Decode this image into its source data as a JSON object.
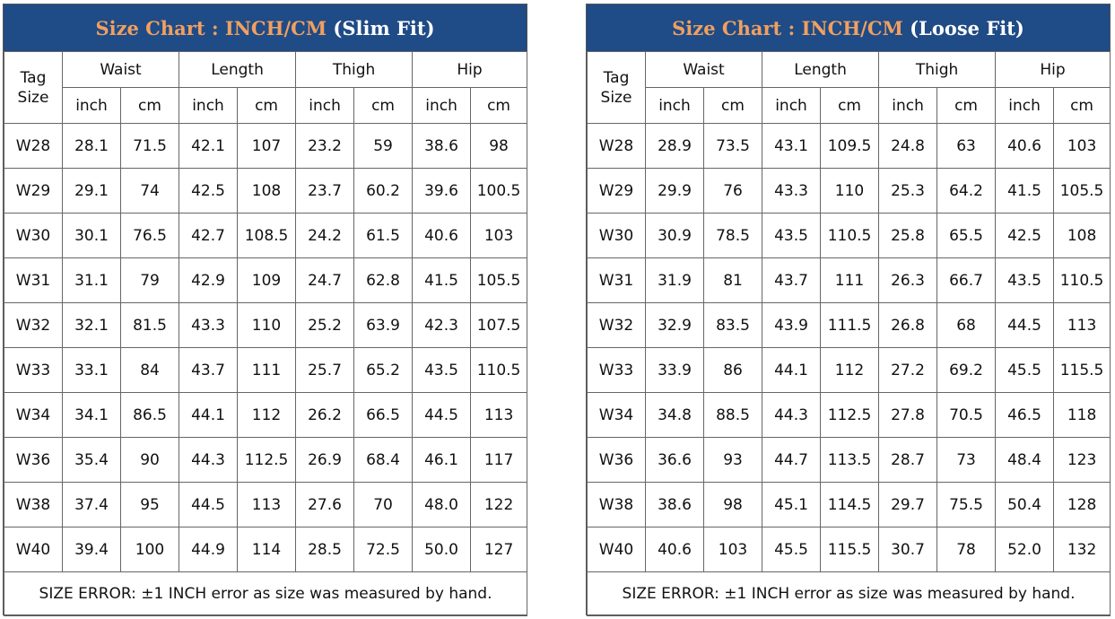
{
  "tables": [
    {
      "title_main": "Size Chart : INCH/CM ",
      "title_fit": "(Slim Fit)",
      "tag_header": [
        "Tag",
        "Size"
      ],
      "groups": [
        "Waist",
        "Length",
        "Thigh",
        "Hip"
      ],
      "units": [
        "inch",
        "cm",
        "inch",
        "cm",
        "inch",
        "cm",
        "inch",
        "cm"
      ],
      "rows": [
        [
          "W28",
          "28.1",
          "71.5",
          "42.1",
          "107",
          "23.2",
          "59",
          "38.6",
          "98"
        ],
        [
          "W29",
          "29.1",
          "74",
          "42.5",
          "108",
          "23.7",
          "60.2",
          "39.6",
          "100.5"
        ],
        [
          "W30",
          "30.1",
          "76.5",
          "42.7",
          "108.5",
          "24.2",
          "61.5",
          "40.6",
          "103"
        ],
        [
          "W31",
          "31.1",
          "79",
          "42.9",
          "109",
          "24.7",
          "62.8",
          "41.5",
          "105.5"
        ],
        [
          "W32",
          "32.1",
          "81.5",
          "43.3",
          "110",
          "25.2",
          "63.9",
          "42.3",
          "107.5"
        ],
        [
          "W33",
          "33.1",
          "84",
          "43.7",
          "111",
          "25.7",
          "65.2",
          "43.5",
          "110.5"
        ],
        [
          "W34",
          "34.1",
          "86.5",
          "44.1",
          "112",
          "26.2",
          "66.5",
          "44.5",
          "113"
        ],
        [
          "W36",
          "35.4",
          "90",
          "44.3",
          "112.5",
          "26.9",
          "68.4",
          "46.1",
          "117"
        ],
        [
          "W38",
          "37.4",
          "95",
          "44.5",
          "113",
          "27.6",
          "70",
          "48.0",
          "122"
        ],
        [
          "W40",
          "39.4",
          "100",
          "44.9",
          "114",
          "28.5",
          "72.5",
          "50.0",
          "127"
        ]
      ],
      "note": "SIZE ERROR: ±1 INCH error as size was measured by hand."
    },
    {
      "title_main": "Size Chart : INCH/CM ",
      "title_fit": "(Loose Fit)",
      "tag_header": [
        "Tag",
        "Size"
      ],
      "groups": [
        "Waist",
        "Length",
        "Thigh",
        "Hip"
      ],
      "units": [
        "inch",
        "cm",
        "inch",
        "cm",
        "inch",
        "cm",
        "inch",
        "cm"
      ],
      "rows": [
        [
          "W28",
          "28.9",
          "73.5",
          "43.1",
          "109.5",
          "24.8",
          "63",
          "40.6",
          "103"
        ],
        [
          "W29",
          "29.9",
          "76",
          "43.3",
          "110",
          "25.3",
          "64.2",
          "41.5",
          "105.5"
        ],
        [
          "W30",
          "30.9",
          "78.5",
          "43.5",
          "110.5",
          "25.8",
          "65.5",
          "42.5",
          "108"
        ],
        [
          "W31",
          "31.9",
          "81",
          "43.7",
          "111",
          "26.3",
          "66.7",
          "43.5",
          "110.5"
        ],
        [
          "W32",
          "32.9",
          "83.5",
          "43.9",
          "111.5",
          "26.8",
          "68",
          "44.5",
          "113"
        ],
        [
          "W33",
          "33.9",
          "86",
          "44.1",
          "112",
          "27.2",
          "69.2",
          "45.5",
          "115.5"
        ],
        [
          "W34",
          "34.8",
          "88.5",
          "44.3",
          "112.5",
          "27.8",
          "70.5",
          "46.5",
          "118"
        ],
        [
          "W36",
          "36.6",
          "93",
          "44.7",
          "113.5",
          "28.7",
          "73",
          "48.4",
          "123"
        ],
        [
          "W38",
          "38.6",
          "98",
          "45.1",
          "114.5",
          "29.7",
          "75.5",
          "50.4",
          "128"
        ],
        [
          "W40",
          "40.6",
          "103",
          "45.5",
          "115.5",
          "30.7",
          "78",
          "52.0",
          "132"
        ]
      ],
      "note": "SIZE ERROR: ±1 INCH error as size was measured by hand."
    }
  ],
  "colors": {
    "header_bg": "#1f4b86",
    "title_accent": "#f0a060",
    "inch_value": "#c00000"
  }
}
